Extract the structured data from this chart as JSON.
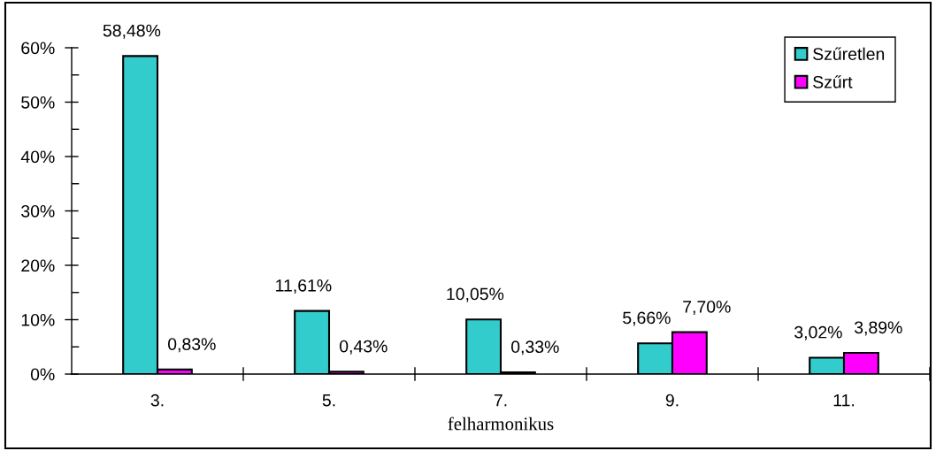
{
  "chart_data": {
    "type": "bar",
    "xlabel": "felharmonikus",
    "categories": [
      "3.",
      "5.",
      "7.",
      "9.",
      "11."
    ],
    "series": [
      {
        "name": "Szűretlen",
        "color": "#33cccc",
        "values": [
          58.48,
          11.61,
          10.05,
          5.66,
          3.02
        ],
        "value_labels": [
          "58,48%",
          "11,61%",
          "10,05%",
          "5,66%",
          "3,02%"
        ]
      },
      {
        "name": "Szűrt",
        "color": "#ff00ff",
        "values": [
          0.83,
          0.43,
          0.33,
          7.7,
          3.89
        ],
        "value_labels": [
          "0,83%",
          "0,43%",
          "0,33%",
          "7,70%",
          "3,89%"
        ]
      }
    ],
    "ylim": [
      0,
      60
    ],
    "yticks": [
      {
        "value": 0,
        "label": "0%"
      },
      {
        "value": 5,
        "label": null
      },
      {
        "value": 10,
        "label": "10%"
      },
      {
        "value": 15,
        "label": null
      },
      {
        "value": 20,
        "label": "20%"
      },
      {
        "value": 25,
        "label": null
      },
      {
        "value": 30,
        "label": "30%"
      },
      {
        "value": 35,
        "label": null
      },
      {
        "value": 40,
        "label": "40%"
      },
      {
        "value": 45,
        "label": null
      },
      {
        "value": 50,
        "label": "50%"
      },
      {
        "value": 55,
        "label": null
      },
      {
        "value": 60,
        "label": "60%"
      }
    ],
    "legend": "top right"
  }
}
